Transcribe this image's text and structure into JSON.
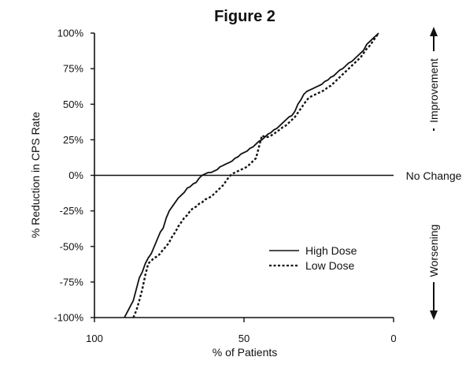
{
  "chart_data": {
    "type": "line",
    "title": "Figure 2",
    "xlabel": "% of Patients",
    "ylabel": "% Reduction in CPS Rate",
    "xlim": [
      100,
      0
    ],
    "ylim": [
      -100,
      100
    ],
    "x_reversed": true,
    "x_ticks": [
      100,
      50,
      0
    ],
    "x_tick_labels": [
      "100",
      "50",
      "0"
    ],
    "y_ticks": [
      100,
      75,
      50,
      25,
      0,
      -25,
      -50,
      -75,
      -100
    ],
    "y_tick_labels": [
      "100%",
      "75%",
      "50%",
      "25%",
      "0%",
      "-25%",
      "-50%",
      "-75%",
      "-100%"
    ],
    "grid": false,
    "legend_position": "lower-right",
    "side_labels": {
      "improvement": "Improvement",
      "no_change": "No Change",
      "worsening": "Worsening"
    },
    "series": [
      {
        "name": "High Dose",
        "line_style": "solid",
        "color": "#111111",
        "points": [
          [
            90,
            -100
          ],
          [
            89,
            -96
          ],
          [
            88,
            -92
          ],
          [
            87,
            -88
          ],
          [
            86,
            -80
          ],
          [
            85,
            -72
          ],
          [
            84,
            -68
          ],
          [
            83,
            -62
          ],
          [
            82,
            -58
          ],
          [
            81,
            -55
          ],
          [
            80,
            -50
          ],
          [
            79,
            -45
          ],
          [
            78,
            -40
          ],
          [
            77,
            -37
          ],
          [
            76,
            -30
          ],
          [
            75,
            -25
          ],
          [
            74,
            -22
          ],
          [
            73,
            -19
          ],
          [
            72,
            -16
          ],
          [
            71,
            -14
          ],
          [
            70,
            -12
          ],
          [
            69,
            -9
          ],
          [
            68,
            -8
          ],
          [
            67,
            -6
          ],
          [
            66,
            -5
          ],
          [
            65,
            -2
          ],
          [
            64,
            0
          ],
          [
            63,
            1
          ],
          [
            62,
            2
          ],
          [
            61,
            2
          ],
          [
            60,
            3
          ],
          [
            59,
            4
          ],
          [
            58,
            6
          ],
          [
            57,
            7
          ],
          [
            56,
            8
          ],
          [
            55,
            9
          ],
          [
            54,
            10
          ],
          [
            53,
            12
          ],
          [
            52,
            13
          ],
          [
            51,
            15
          ],
          [
            50,
            16
          ],
          [
            49,
            17
          ],
          [
            48,
            19
          ],
          [
            47,
            20
          ],
          [
            46,
            22
          ],
          [
            45,
            24
          ],
          [
            44,
            25
          ],
          [
            43,
            27
          ],
          [
            42,
            29
          ],
          [
            41,
            30
          ],
          [
            40,
            32
          ],
          [
            39,
            33
          ],
          [
            38,
            35
          ],
          [
            37,
            37
          ],
          [
            36,
            39
          ],
          [
            35,
            41
          ],
          [
            34,
            42
          ],
          [
            33,
            45
          ],
          [
            32,
            50
          ],
          [
            31,
            53
          ],
          [
            30,
            57
          ],
          [
            29,
            59
          ],
          [
            28,
            60
          ],
          [
            27,
            61
          ],
          [
            26,
            62
          ],
          [
            25,
            63
          ],
          [
            24,
            64
          ],
          [
            23,
            66
          ],
          [
            22,
            67
          ],
          [
            21,
            69
          ],
          [
            20,
            70
          ],
          [
            19,
            72
          ],
          [
            18,
            74
          ],
          [
            17,
            75
          ],
          [
            16,
            77
          ],
          [
            15,
            79
          ],
          [
            14,
            80
          ],
          [
            13,
            82
          ],
          [
            12,
            84
          ],
          [
            11,
            86
          ],
          [
            10,
            88
          ],
          [
            9,
            92
          ],
          [
            8,
            94
          ],
          [
            7,
            96
          ],
          [
            6,
            98
          ],
          [
            5,
            100
          ]
        ]
      },
      {
        "name": "Low Dose",
        "line_style": "dashed",
        "color": "#111111",
        "points": [
          [
            87,
            -100
          ],
          [
            86,
            -95
          ],
          [
            85,
            -88
          ],
          [
            84,
            -80
          ],
          [
            83,
            -70
          ],
          [
            82,
            -62
          ],
          [
            81,
            -60
          ],
          [
            80,
            -58
          ],
          [
            79,
            -57
          ],
          [
            78,
            -55
          ],
          [
            77,
            -52
          ],
          [
            76,
            -50
          ],
          [
            75,
            -47
          ],
          [
            74,
            -43
          ],
          [
            73,
            -40
          ],
          [
            72,
            -36
          ],
          [
            71,
            -33
          ],
          [
            70,
            -30
          ],
          [
            69,
            -28
          ],
          [
            68,
            -25
          ],
          [
            67,
            -23
          ],
          [
            66,
            -22
          ],
          [
            65,
            -20
          ],
          [
            64,
            -19
          ],
          [
            63,
            -17
          ],
          [
            62,
            -16
          ],
          [
            61,
            -15
          ],
          [
            60,
            -13
          ],
          [
            59,
            -11
          ],
          [
            58,
            -9
          ],
          [
            57,
            -7
          ],
          [
            56,
            -4
          ],
          [
            55,
            -1
          ],
          [
            54,
            1
          ],
          [
            53,
            2
          ],
          [
            52,
            3
          ],
          [
            51,
            4
          ],
          [
            50,
            5
          ],
          [
            49,
            6
          ],
          [
            48,
            8
          ],
          [
            47,
            10
          ],
          [
            46,
            12
          ],
          [
            45,
            20
          ],
          [
            44,
            28
          ],
          [
            43,
            27
          ],
          [
            42,
            27
          ],
          [
            41,
            28
          ],
          [
            40,
            29
          ],
          [
            39,
            31
          ],
          [
            38,
            32
          ],
          [
            37,
            34
          ],
          [
            36,
            35
          ],
          [
            35,
            37
          ],
          [
            34,
            39
          ],
          [
            33,
            41
          ],
          [
            32,
            44
          ],
          [
            31,
            47
          ],
          [
            30,
            50
          ],
          [
            29,
            53
          ],
          [
            28,
            55
          ],
          [
            27,
            56
          ],
          [
            26,
            57
          ],
          [
            25,
            58
          ],
          [
            24,
            59
          ],
          [
            23,
            60
          ],
          [
            22,
            62
          ],
          [
            21,
            63
          ],
          [
            20,
            65
          ],
          [
            19,
            67
          ],
          [
            18,
            69
          ],
          [
            17,
            71
          ],
          [
            16,
            73
          ],
          [
            15,
            75
          ],
          [
            14,
            77
          ],
          [
            13,
            79
          ],
          [
            12,
            81
          ],
          [
            11,
            83
          ],
          [
            10,
            86
          ],
          [
            9,
            89
          ],
          [
            8,
            91
          ],
          [
            7,
            94
          ],
          [
            6,
            97
          ],
          [
            5,
            100
          ]
        ]
      }
    ]
  }
}
